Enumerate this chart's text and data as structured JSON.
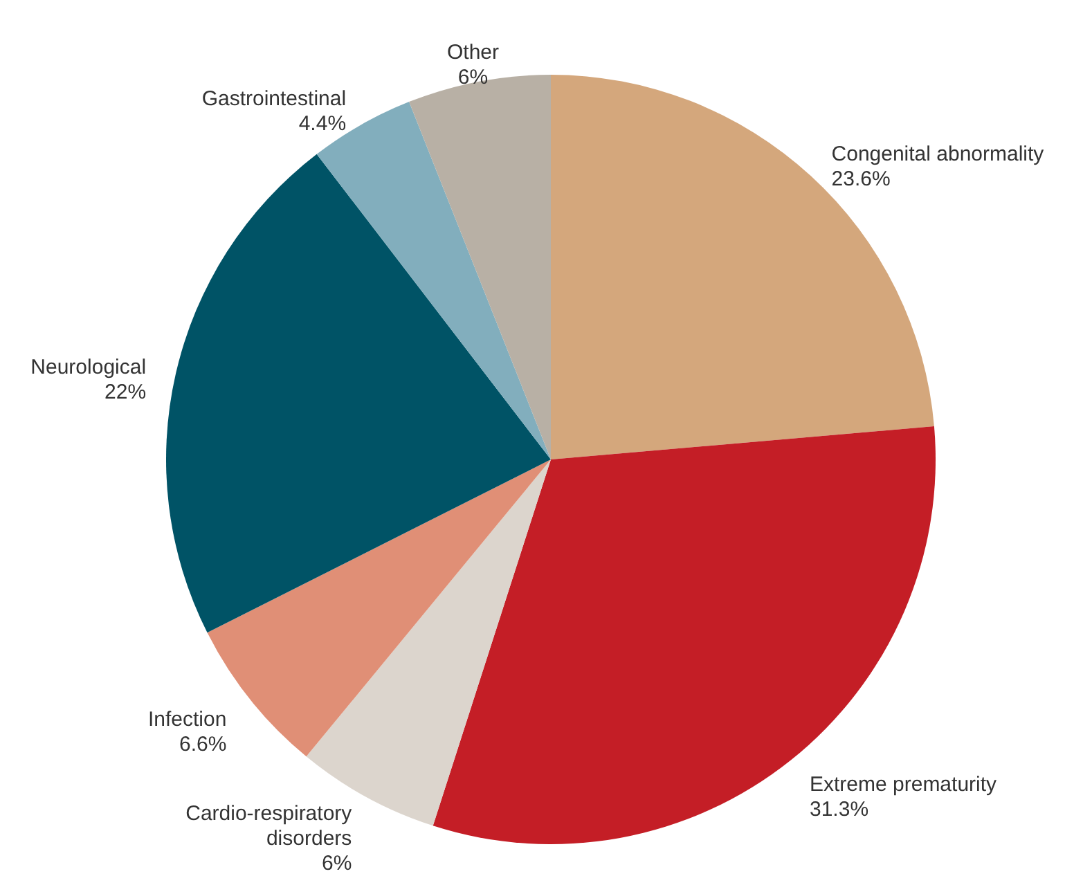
{
  "chart_data": {
    "type": "pie",
    "categories": [
      "Congenital abnormality",
      "Extreme prematurity",
      "Cardio-respiratory disorders",
      "Infection",
      "Neurological",
      "Gastrointestinal",
      "Other"
    ],
    "values": [
      23.6,
      31.3,
      6,
      6.6,
      22,
      4.4,
      6
    ],
    "value_labels": [
      "23.6%",
      "31.3%",
      "6%",
      "6.6%",
      "22%",
      "4.4%",
      "6%"
    ],
    "colors": [
      "#d4a77c",
      "#c41e26",
      "#dcd5cd",
      "#e08f76",
      "#005366",
      "#82aebd",
      "#b8b0a5"
    ]
  }
}
